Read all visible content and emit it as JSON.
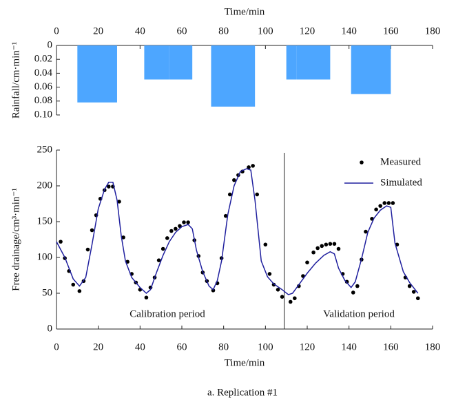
{
  "caption": "a. Replication #1",
  "chart_data": [
    {
      "type": "bar",
      "xlabel": "Time/min",
      "ylabel": "Rainfall/cm·min⁻¹",
      "x_start": [
        10,
        42,
        54,
        74,
        110,
        115,
        141
      ],
      "x_end": [
        29,
        54,
        65,
        95,
        115,
        131,
        160
      ],
      "values": [
        0.082,
        0.049,
        0.049,
        0.088,
        0.049,
        0.049,
        0.07
      ],
      "color": "#4da6ff",
      "xlim": [
        0,
        180
      ],
      "xticks": [
        0,
        20,
        40,
        60,
        80,
        100,
        120,
        140,
        160,
        180
      ],
      "ylim": [
        0,
        0.1
      ],
      "y_inverted": true,
      "yticks": [
        0,
        0.02,
        0.04,
        0.06,
        0.08,
        {
          "value": 0.1,
          "label": "0.10"
        }
      ]
    },
    {
      "type": "line",
      "xlabel": "Time/min",
      "ylabel": "Free drainage/cm³·min⁻¹",
      "xlim": [
        0,
        180
      ],
      "xticks": [
        0,
        20,
        40,
        60,
        80,
        100,
        120,
        140,
        160,
        180
      ],
      "ylim": [
        0,
        250
      ],
      "yticks": [
        0,
        50,
        100,
        150,
        200,
        250
      ],
      "divider_x": 109,
      "annotations": [
        "Calibration period",
        "Validation period"
      ],
      "series": [
        {
          "name": "Measured",
          "style": "dots",
          "color": "#000000",
          "x": [
            2,
            4,
            6,
            8,
            11,
            13,
            15,
            17,
            19,
            21,
            23,
            25,
            27,
            30,
            32,
            34,
            36,
            38,
            40,
            43,
            45,
            47,
            49,
            51,
            53,
            55,
            57,
            59,
            61,
            63,
            66,
            68,
            70,
            72,
            75,
            77,
            79,
            81,
            83,
            85,
            87,
            89,
            92,
            94,
            96,
            100,
            102,
            104,
            106,
            108,
            112,
            114,
            116,
            118,
            120,
            123,
            125,
            127,
            129,
            131,
            133,
            135,
            137,
            139,
            142,
            144,
            146,
            148,
            151,
            153,
            155,
            157,
            159,
            161,
            163,
            167,
            169,
            171,
            173
          ],
          "values": [
            122,
            99,
            81,
            62,
            53,
            67,
            111,
            138,
            159,
            182,
            194,
            199,
            199,
            178,
            128,
            94,
            77,
            65,
            55,
            44,
            58,
            72,
            96,
            112,
            127,
            137,
            140,
            144,
            149,
            149,
            124,
            102,
            79,
            67,
            54,
            64,
            99,
            158,
            188,
            208,
            215,
            220,
            226,
            228,
            188,
            118,
            77,
            62,
            55,
            45,
            38,
            43,
            60,
            74,
            93,
            107,
            113,
            116,
            118,
            119,
            119,
            112,
            77,
            66,
            51,
            60,
            97,
            136,
            154,
            167,
            172,
            176,
            176,
            176,
            118,
            72,
            60,
            52,
            43
          ]
        },
        {
          "name": "Simulated",
          "style": "line",
          "color": "#1f1f9e",
          "x": [
            0,
            4,
            8,
            11,
            14,
            17,
            20,
            23,
            25,
            27,
            29,
            31,
            33,
            36,
            40,
            43,
            45,
            48,
            51,
            54,
            57,
            60,
            63,
            65,
            67,
            70,
            73,
            75,
            77,
            79,
            82,
            85,
            88,
            91,
            93,
            95,
            98,
            101,
            104,
            108,
            111,
            113,
            116,
            120,
            124,
            128,
            131,
            133,
            135,
            138,
            141,
            143,
            146,
            149,
            152,
            155,
            158,
            160,
            162,
            166,
            169,
            173
          ],
          "values": [
            122,
            100,
            70,
            60,
            72,
            118,
            168,
            195,
            205,
            205,
            180,
            130,
            95,
            72,
            58,
            50,
            55,
            80,
            103,
            122,
            135,
            143,
            146,
            140,
            110,
            80,
            60,
            55,
            68,
            95,
            160,
            200,
            220,
            224,
            222,
            180,
            95,
            73,
            63,
            55,
            48,
            50,
            62,
            78,
            92,
            103,
            108,
            105,
            85,
            68,
            58,
            66,
            98,
            135,
            155,
            166,
            172,
            170,
            120,
            80,
            65,
            50
          ]
        }
      ]
    }
  ]
}
